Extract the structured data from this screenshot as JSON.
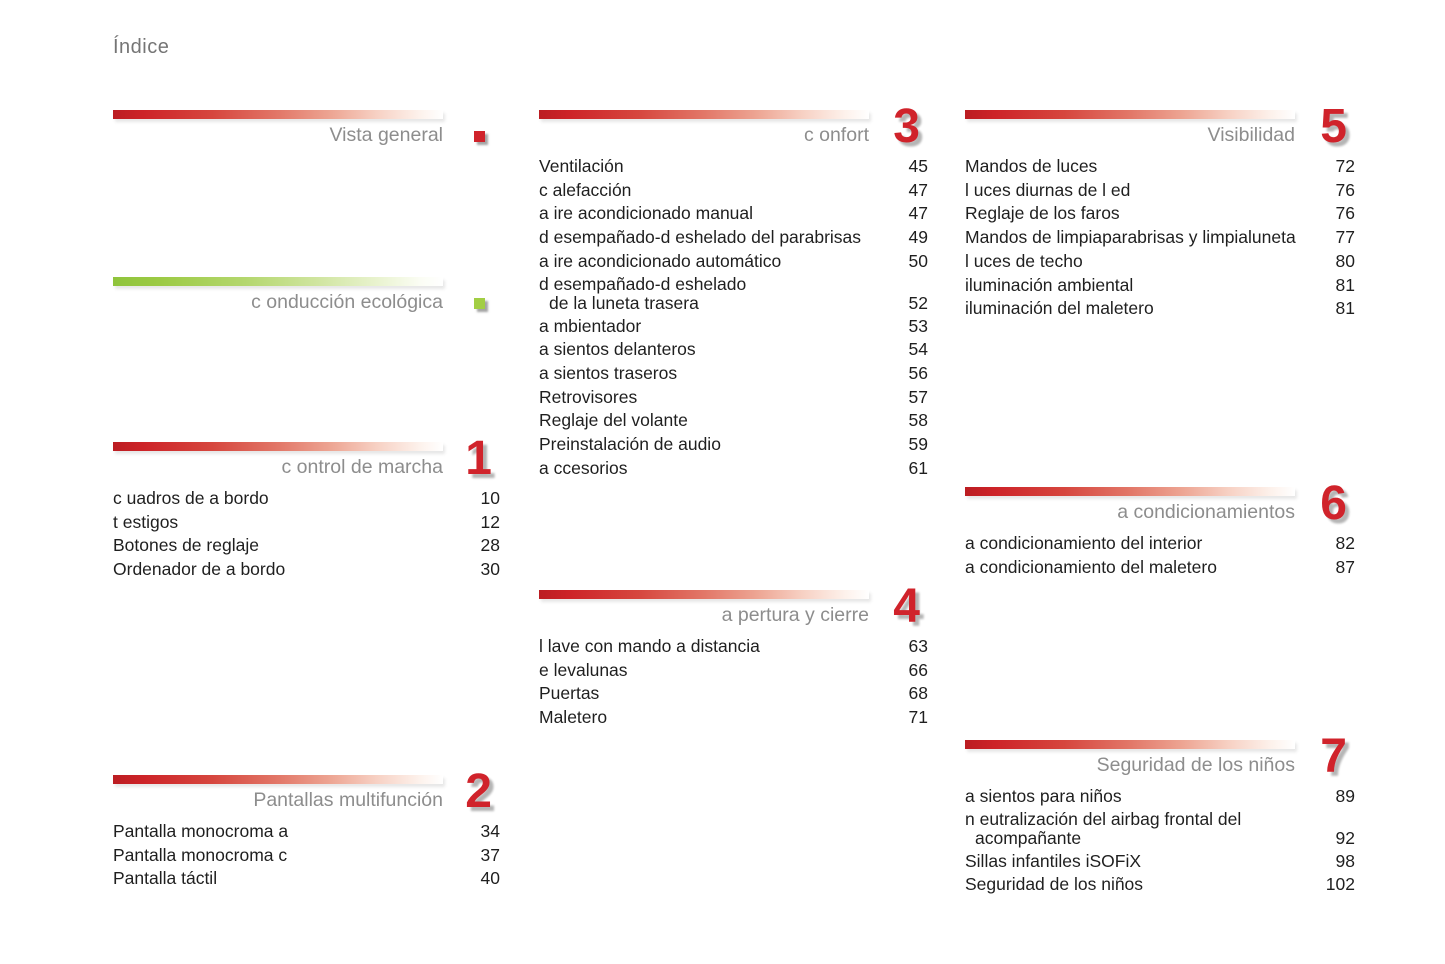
{
  "page": {
    "title": "Índice"
  },
  "colors": {
    "accent_red": "#d0232b",
    "accent_green": "#9cc83f",
    "title_gray": "#8d8d8d",
    "body_text": "#1f1f1f",
    "number_shadow": "#b5b5b5"
  },
  "sections": {
    "vista_general": {
      "title": "Vista general",
      "theme": "red",
      "marker": "square",
      "items": []
    },
    "conduccion_ecologica": {
      "title": "c onducción ecológica",
      "theme": "green",
      "marker": "square",
      "items": []
    },
    "control_de_marcha": {
      "title": "c ontrol de marcha",
      "number": "1",
      "theme": "red",
      "items": [
        {
          "label": "c uadros de a bordo",
          "page": "10"
        },
        {
          "label": "t estigos",
          "page": "12"
        },
        {
          "label": "Botones de reglaje",
          "page": "28"
        },
        {
          "label": "Ordenador de a bordo",
          "page": "30"
        }
      ]
    },
    "pantallas_multifuncion": {
      "title": "Pantallas multifunción",
      "number": "2",
      "theme": "red",
      "items": [
        {
          "label": "Pantalla monocroma a",
          "page": "34"
        },
        {
          "label": "Pantalla monocroma c",
          "page": "37"
        },
        {
          "label": "Pantalla táctil",
          "page": "40"
        }
      ]
    },
    "confort": {
      "title": "c onfort",
      "number": "3",
      "theme": "red",
      "items": [
        {
          "label": "Ventilación",
          "page": "45"
        },
        {
          "label": "c alefacción",
          "page": "47"
        },
        {
          "label": "a ire acondicionado manual",
          "page": "47"
        },
        {
          "label": "d esempañado-d eshelado del parabrisas",
          "page": "49"
        },
        {
          "label": "a ire acondicionado automático",
          "page": "50"
        },
        {
          "label": "d esempañado-d eshelado",
          "label2": "de la luneta trasera",
          "page": "52"
        },
        {
          "label": "a mbientador",
          "page": "53"
        },
        {
          "label": "a sientos delanteros",
          "page": "54"
        },
        {
          "label": "a sientos traseros",
          "page": "56"
        },
        {
          "label": "Retrovisores",
          "page": "57"
        },
        {
          "label": "Reglaje del volante",
          "page": "58"
        },
        {
          "label": "Preinstalación de audio",
          "page": "59"
        },
        {
          "label": "a ccesorios",
          "page": "61"
        }
      ]
    },
    "apertura_y_cierre": {
      "title": "a pertura y cierre",
      "number": "4",
      "theme": "red",
      "items": [
        {
          "label": "l lave con mando a distancia",
          "page": "63"
        },
        {
          "label": "e levalunas",
          "page": "66"
        },
        {
          "label": "Puertas",
          "page": "68"
        },
        {
          "label": "Maletero",
          "page": "71"
        }
      ]
    },
    "visibilidad": {
      "title": "Visibilidad",
      "number": "5",
      "theme": "red",
      "items": [
        {
          "label": "Mandos de luces",
          "page": "72"
        },
        {
          "label": "l uces diurnas de l ed",
          "page": "76"
        },
        {
          "label": "Reglaje de los faros",
          "page": "76"
        },
        {
          "label": "Mandos de limpiaparabrisas y limpialuneta",
          "page": "77"
        },
        {
          "label": "l uces de techo",
          "page": "80"
        },
        {
          "label": "iluminación ambiental",
          "page": "81"
        },
        {
          "label": "iluminación del maletero",
          "page": "81"
        }
      ]
    },
    "acondicionamientos": {
      "title": "a condicionamientos",
      "number": "6",
      "theme": "red",
      "items": [
        {
          "label": "a condicionamiento del interior",
          "page": "82"
        },
        {
          "label": "a condicionamiento del maletero",
          "page": "87"
        }
      ]
    },
    "seguridad_ninos": {
      "title": "Seguridad de los niños",
      "number": "7",
      "theme": "red",
      "items": [
        {
          "label": "a sientos para niños",
          "page": "89"
        },
        {
          "label": "n eutralización del airbag frontal del",
          "label2": "acompañante",
          "page": "92"
        },
        {
          "label": "Sillas infantiles iSOFiX",
          "page": "98"
        },
        {
          "label": "Seguridad de los niños",
          "page": "102"
        }
      ]
    }
  }
}
